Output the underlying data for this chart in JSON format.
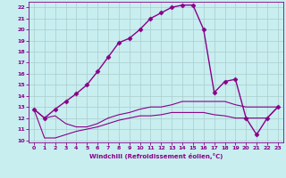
{
  "xlabel": "Windchill (Refroidissement éolien,°C)",
  "background_color": "#c8eef0",
  "grid_color": "#aacccc",
  "line_color": "#880088",
  "xlim": [
    -0.5,
    23.5
  ],
  "ylim": [
    9.8,
    22.5
  ],
  "yticks": [
    10,
    11,
    12,
    13,
    14,
    15,
    16,
    17,
    18,
    19,
    20,
    21,
    22
  ],
  "xticks": [
    0,
    1,
    2,
    3,
    4,
    5,
    6,
    7,
    8,
    9,
    10,
    11,
    12,
    13,
    14,
    15,
    16,
    17,
    18,
    19,
    20,
    21,
    22,
    23
  ],
  "lines": [
    {
      "x": [
        0,
        1,
        2,
        3,
        4,
        5,
        6,
        7,
        8,
        9,
        10,
        11,
        12,
        13,
        14,
        15,
        16,
        17,
        18,
        19,
        20,
        21,
        22,
        23
      ],
      "y": [
        12.8,
        12.0,
        12.8,
        13.5,
        14.2,
        15.0,
        16.2,
        17.5,
        18.8,
        19.2,
        20.0,
        21.0,
        21.5,
        22.0,
        22.2,
        22.2,
        20.0,
        14.3,
        15.3,
        15.5,
        12.0,
        10.5,
        12.0,
        13.0
      ],
      "marker": "D",
      "markersize": 2.5,
      "linewidth": 1.0
    },
    {
      "x": [
        0,
        1,
        2,
        3,
        4,
        5,
        6,
        7,
        8,
        9,
        10,
        11,
        12,
        13,
        14,
        15,
        16,
        17,
        18,
        19,
        20,
        21,
        22,
        23
      ],
      "y": [
        12.8,
        12.0,
        12.2,
        11.5,
        11.2,
        11.2,
        11.5,
        12.0,
        12.3,
        12.5,
        12.8,
        13.0,
        13.0,
        13.2,
        13.5,
        13.5,
        13.5,
        13.5,
        13.5,
        13.2,
        13.0,
        13.0,
        13.0,
        13.0
      ],
      "marker": null,
      "markersize": 0,
      "linewidth": 0.8
    },
    {
      "x": [
        0,
        1,
        2,
        3,
        4,
        5,
        6,
        7,
        8,
        9,
        10,
        11,
        12,
        13,
        14,
        15,
        16,
        17,
        18,
        19,
        20,
        21,
        22,
        23
      ],
      "y": [
        12.8,
        10.2,
        10.2,
        10.5,
        10.8,
        11.0,
        11.2,
        11.5,
        11.8,
        12.0,
        12.2,
        12.2,
        12.3,
        12.5,
        12.5,
        12.5,
        12.5,
        12.3,
        12.2,
        12.0,
        12.0,
        12.0,
        12.0,
        13.0
      ],
      "marker": null,
      "markersize": 0,
      "linewidth": 0.8
    }
  ]
}
